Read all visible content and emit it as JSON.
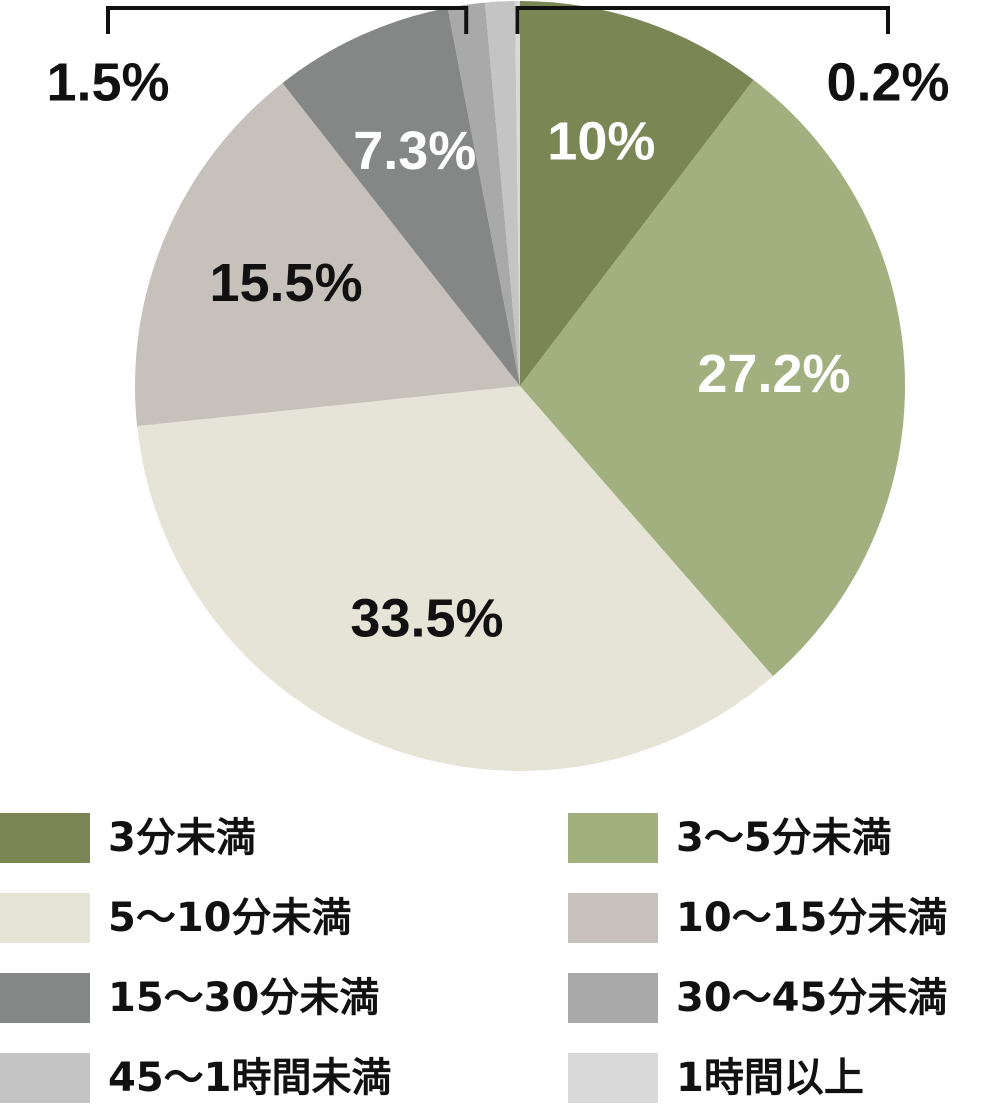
{
  "chart_data": {
    "type": "pie",
    "categories": [
      "3分未満",
      "3〜5分未満",
      "5〜10分未満",
      "10〜15分未満",
      "15〜30分未満",
      "30〜45分未満",
      "45〜1時間未満",
      "1時間以上"
    ],
    "values": [
      10,
      27.2,
      33.5,
      15.5,
      7.3,
      1.5,
      1.2,
      0.2
    ],
    "value_labels": [
      "10%",
      "27.2%",
      "33.5%",
      "15.5%",
      "7.3%",
      "1.5%",
      null,
      "0.2%"
    ],
    "colors": [
      "#7a8755",
      "#a2b07f",
      "#e6e4d7",
      "#c6c1ba",
      "#858686",
      "#a9a9a9",
      "#c4c4c4",
      "#d9d9d9"
    ],
    "label_colors": [
      "#ffffff",
      "#ffffff",
      "#111111",
      "#111111",
      "#ffffff",
      "#111111",
      null,
      "#111111"
    ]
  }
}
